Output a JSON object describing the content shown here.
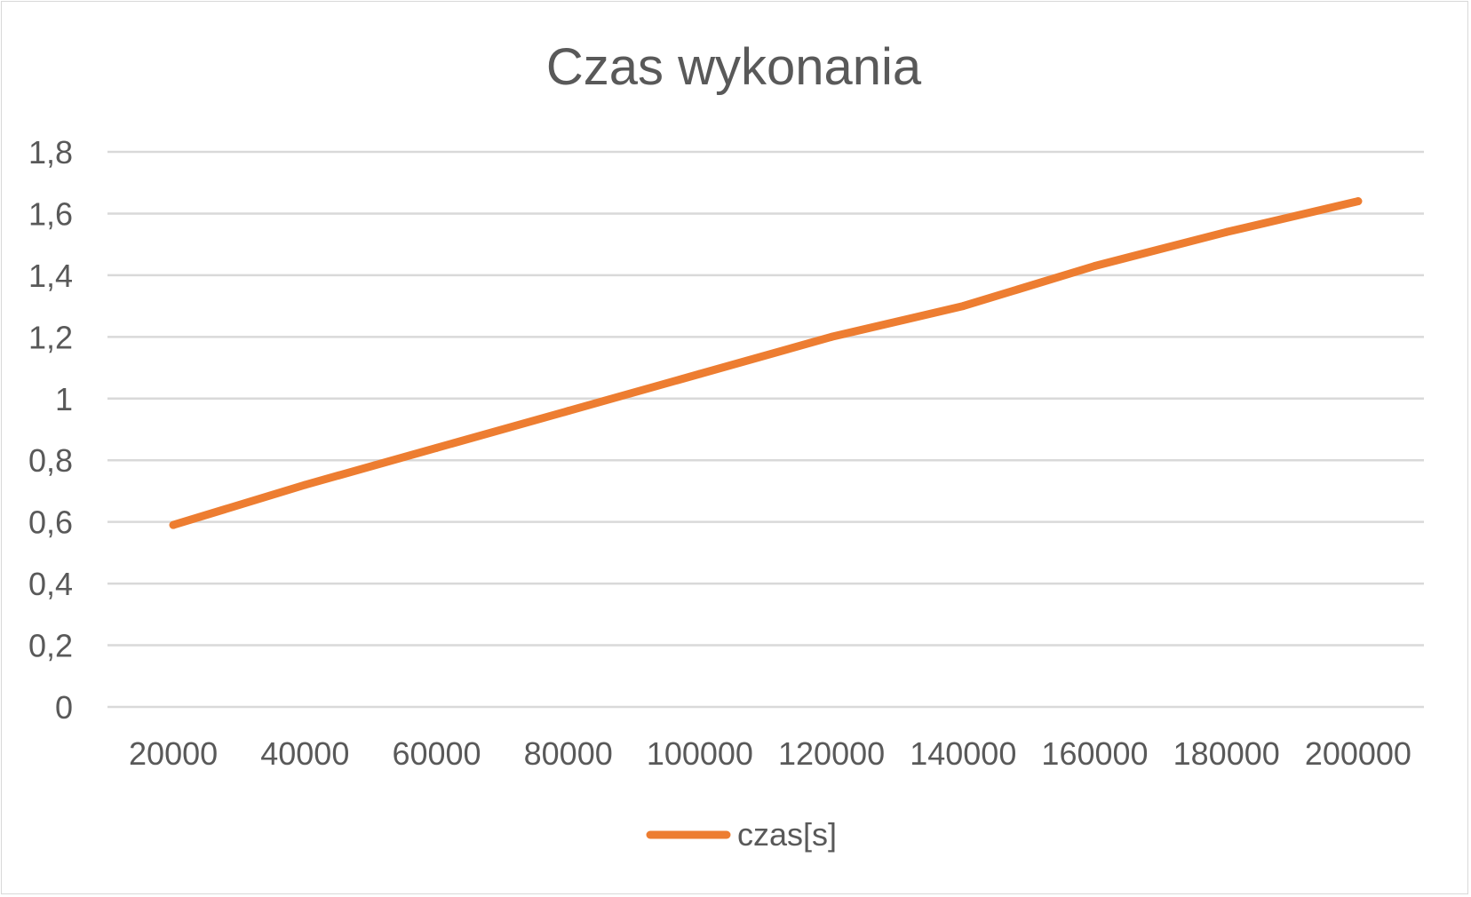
{
  "chart_data": {
    "type": "line",
    "title": "Czas wykonania",
    "xlabel": "",
    "ylabel": "",
    "categories": [
      "20000",
      "40000",
      "60000",
      "80000",
      "100000",
      "120000",
      "140000",
      "160000",
      "180000",
      "200000"
    ],
    "series": [
      {
        "name": "czas[s]",
        "values": [
          0.59,
          0.72,
          0.84,
          0.96,
          1.08,
          1.2,
          1.3,
          1.43,
          1.54,
          1.64
        ]
      }
    ],
    "ylim": [
      0,
      1.8
    ],
    "yticks": [
      "0",
      "0,2",
      "0,4",
      "0,6",
      "0,8",
      "1",
      "1,2",
      "1,4",
      "1,6",
      "1,8"
    ],
    "grid": true,
    "legend_position": "bottom",
    "colors": {
      "series": "#ed7d31",
      "grid": "#d9d9d9",
      "text": "#595959"
    }
  }
}
